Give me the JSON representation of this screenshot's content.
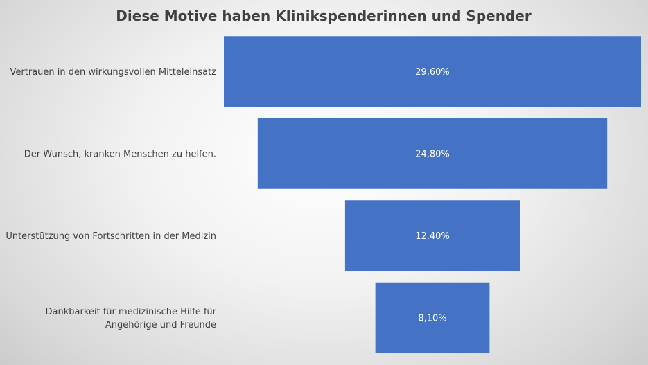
{
  "chart_data": {
    "type": "bar",
    "subtype": "funnel",
    "title": "Diese Motive haben Klinikspenderinnen und Spender",
    "categories": [
      "Vertrauen in den wirkungsvollen Mitteleinsatz",
      "Der Wunsch, kranken Menschen zu helfen.",
      "Unterstützung von Fortschritten in der Medizin",
      "Dankbarkeit für medizinische Hilfe für Angehörige und Freunde"
    ],
    "values": [
      29.6,
      24.8,
      12.4,
      8.1
    ],
    "value_labels": [
      "29,60%",
      "24,80%",
      "12,40%",
      "8,10%"
    ],
    "unit": "%",
    "bar_color": "#4472c4",
    "grid": false,
    "legend": "none"
  }
}
